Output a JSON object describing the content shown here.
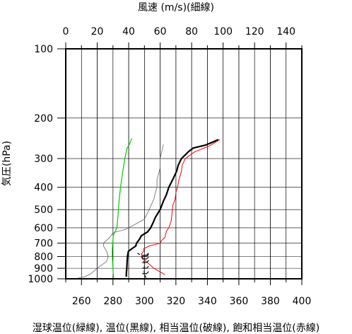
{
  "chart_data": {
    "type": "line",
    "top_axis_title": "風速 (m/s)(細線)",
    "left_axis_title": "気圧(hPa)",
    "bottom_axis_title": "湿球温位(緑線), 温位(黒線), 相当温位(破線), 飽和相当温位(赤線)",
    "temp_axis": {
      "min": 250,
      "max": 400,
      "ticks": [
        "260",
        "280",
        "300",
        "320",
        "340",
        "360",
        "380",
        "400"
      ]
    },
    "wind_axis": {
      "min": 0,
      "max": 150,
      "ticks": [
        "0",
        "20",
        "40",
        "60",
        "80",
        "100",
        "120",
        "140"
      ]
    },
    "pressure_axis": {
      "min": 100,
      "max": 1000,
      "log": true,
      "ticks": [
        {
          "p": 100,
          "label": "100"
        },
        {
          "p": 200,
          "label": "200"
        },
        {
          "p": 300,
          "label": "300"
        },
        {
          "p": 400,
          "label": "400"
        },
        {
          "p": 500,
          "label": "500"
        },
        {
          "p": 600,
          "label": "600"
        },
        {
          "p": 700,
          "label": "700"
        },
        {
          "p": 800,
          "label": "800"
        },
        {
          "p": 900,
          "label": "900"
        },
        {
          "p": 1000,
          "label": "1000"
        }
      ]
    },
    "grid": true,
    "series": [
      {
        "name": "湿球温位",
        "color": "#00cc00",
        "width": 1.2,
        "x_axis": "temp",
        "points": [
          [
            1000,
            280.5
          ],
          [
            950,
            280.2
          ],
          [
            900,
            280.0
          ],
          [
            850,
            279.8
          ],
          [
            800,
            279.6
          ],
          [
            750,
            279.6
          ],
          [
            700,
            279.8
          ],
          [
            650,
            280.2
          ],
          [
            620,
            281.5
          ],
          [
            600,
            282.5
          ],
          [
            550,
            283.0
          ],
          [
            500,
            283.5
          ],
          [
            450,
            284.0
          ],
          [
            400,
            284.8
          ],
          [
            350,
            286.0
          ],
          [
            300,
            287.5
          ],
          [
            270,
            289.0
          ],
          [
            260,
            290.5
          ],
          [
            245,
            292.0
          ]
        ]
      },
      {
        "name": "風速",
        "color": "#666666",
        "width": 0.8,
        "x_axis": "wind",
        "points": [
          [
            1000,
            6
          ],
          [
            980,
            12
          ],
          [
            950,
            16
          ],
          [
            900,
            20
          ],
          [
            860,
            24
          ],
          [
            840,
            26
          ],
          [
            800,
            27
          ],
          [
            760,
            26
          ],
          [
            720,
            24
          ],
          [
            700,
            24
          ],
          [
            660,
            28
          ],
          [
            630,
            30
          ],
          [
            610,
            38
          ],
          [
            580,
            44
          ],
          [
            550,
            50
          ],
          [
            500,
            53
          ],
          [
            450,
            56
          ],
          [
            420,
            57
          ],
          [
            400,
            58
          ],
          [
            370,
            58
          ],
          [
            330,
            60
          ],
          [
            300,
            60
          ],
          [
            280,
            61
          ],
          [
            260,
            62
          ]
        ]
      },
      {
        "name": "温位",
        "color": "#000000",
        "width": 2.2,
        "x_axis": "temp",
        "points": [
          [
            980,
            288.5
          ],
          [
            950,
            288.5
          ],
          [
            900,
            288.8
          ],
          [
            850,
            289.0
          ],
          [
            800,
            289.2
          ],
          [
            760,
            289.8
          ],
          [
            740,
            292.0
          ],
          [
            720,
            294.5
          ],
          [
            700,
            295.0
          ],
          [
            670,
            297.0
          ],
          [
            650,
            298.0
          ],
          [
            625,
            302.0
          ],
          [
            600,
            304.0
          ],
          [
            570,
            305.5
          ],
          [
            540,
            307.0
          ],
          [
            500,
            310.0
          ],
          [
            460,
            312.0
          ],
          [
            430,
            314.0
          ],
          [
            400,
            315.5
          ],
          [
            370,
            318.0
          ],
          [
            340,
            320.5
          ],
          [
            320,
            321.5
          ],
          [
            300,
            323.5
          ],
          [
            280,
            328.0
          ],
          [
            270,
            331.0
          ],
          [
            262,
            339.0
          ],
          [
            255,
            343.0
          ],
          [
            248,
            347.0
          ]
        ]
      },
      {
        "name": "相当温位",
        "color": "#000000",
        "width": 1.2,
        "dash": "4,3",
        "x_axis": "temp",
        "points": [
          [
            990,
            301.0
          ],
          [
            960,
            300.0
          ],
          [
            920,
            299.8
          ],
          [
            880,
            300.0
          ],
          [
            850,
            300.0
          ],
          [
            820,
            299.0
          ],
          [
            800,
            298.0
          ],
          [
            780,
            296.5
          ],
          [
            770,
            295.0
          ]
        ]
      },
      {
        "name": "飽和相当温位",
        "color": "#ff0000",
        "width": 1.0,
        "x_axis": "temp",
        "points": [
          [
            960,
            313.0
          ],
          [
            900,
            306.0
          ],
          [
            840,
            301.0
          ],
          [
            810,
            299.0
          ],
          [
            780,
            298.0
          ],
          [
            760,
            299.5
          ],
          [
            740,
            299.5
          ],
          [
            720,
            303.0
          ],
          [
            700,
            310.0
          ],
          [
            680,
            311.0
          ],
          [
            660,
            313.0
          ],
          [
            640,
            313.5
          ],
          [
            620,
            314.0
          ],
          [
            600,
            315.5
          ],
          [
            560,
            317.0
          ],
          [
            520,
            317.5
          ],
          [
            480,
            318.0
          ],
          [
            450,
            319.5
          ],
          [
            420,
            320.0
          ],
          [
            400,
            321.0
          ],
          [
            370,
            322.0
          ],
          [
            340,
            323.5
          ],
          [
            320,
            324.0
          ],
          [
            300,
            326.0
          ],
          [
            280,
            332.0
          ],
          [
            265,
            341.0
          ],
          [
            255,
            345.0
          ],
          [
            248,
            348.0
          ]
        ]
      }
    ],
    "wind_barbs_pressure": [
      790,
      800,
      820,
      850,
      900,
      950
    ],
    "wind_barbs_temp": 300
  }
}
